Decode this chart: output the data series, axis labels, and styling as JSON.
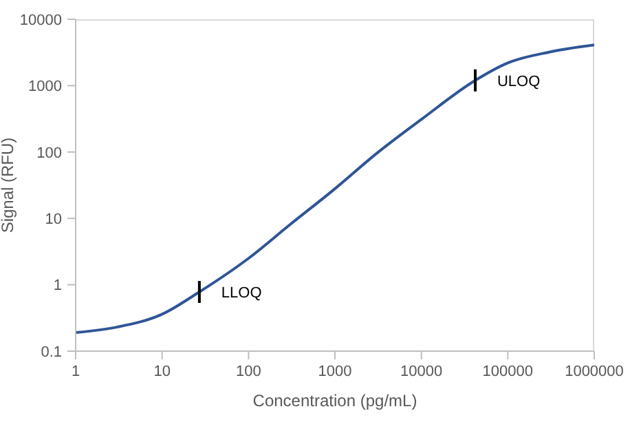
{
  "chart_data": {
    "type": "line",
    "xlabel": "Concentration (pg/mL)",
    "ylabel": "Signal (RFU)",
    "log": "xy",
    "x": [
      1,
      3,
      10,
      27,
      100,
      300,
      1000,
      3000,
      10000,
      42000,
      100000,
      300000,
      1000000
    ],
    "series": [
      {
        "color": "#2f5597",
        "values": [
          0.19,
          0.23,
          0.36,
          0.78,
          2.5,
          8,
          28,
          94,
          310,
          1200,
          2200,
          3200,
          4100
        ]
      }
    ],
    "xlim": [
      1,
      1000000
    ],
    "xticks": [
      1,
      10,
      100,
      1000,
      10000,
      100000,
      1000000
    ],
    "ylim": [
      0.1,
      10000
    ],
    "yticks": [
      0.1,
      1,
      10,
      100,
      1000,
      10000
    ],
    "grid": false,
    "legend": false,
    "marker": "none",
    "line_style": "solid",
    "annotations": [
      {
        "text": "LLOQ",
        "x": 27,
        "y": 0.78
      },
      {
        "text": "ULOQ",
        "x": 42000,
        "y": 1200
      }
    ]
  }
}
